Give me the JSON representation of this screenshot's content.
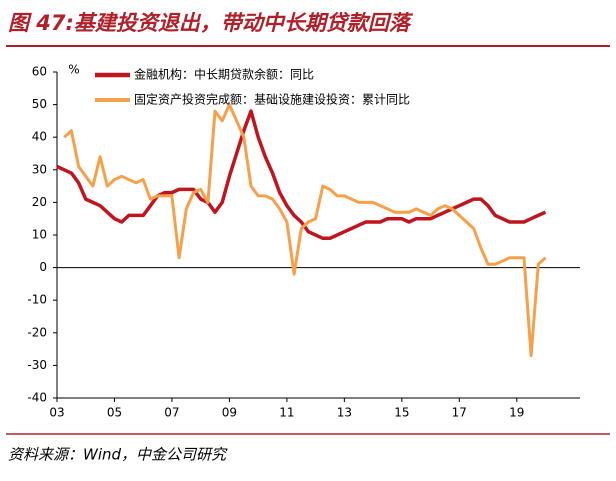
{
  "chart_data": {
    "type": "line",
    "title": "图 47:基建投资退出，带动中长期贷款回落",
    "source": "资料来源：Wind，中金公司研究",
    "y_unit": "%",
    "x": [
      3,
      3.25,
      3.5,
      3.75,
      4,
      4.25,
      4.5,
      4.75,
      5,
      5.25,
      5.5,
      5.75,
      6,
      6.25,
      6.5,
      6.75,
      7,
      7.25,
      7.5,
      7.75,
      8,
      8.25,
      8.5,
      8.75,
      9,
      9.25,
      9.5,
      9.75,
      10,
      10.25,
      10.5,
      10.75,
      11,
      11.25,
      11.5,
      11.75,
      12,
      12.25,
      12.5,
      12.75,
      13,
      13.25,
      13.5,
      13.75,
      14,
      14.25,
      14.5,
      14.75,
      15,
      15.25,
      15.5,
      15.75,
      16,
      16.25,
      16.5,
      16.75,
      17,
      17.25,
      17.5,
      17.75,
      18,
      18.25,
      18.5,
      18.75,
      19,
      19.25,
      19.5,
      19.75,
      20
    ],
    "series": [
      {
        "name": "金融机构：中长期贷款余额：同比",
        "color": "#c0141e",
        "width": 3.5,
        "values": [
          31,
          30,
          29,
          26,
          21,
          20,
          19,
          17,
          15,
          14,
          16,
          16,
          16,
          19,
          22,
          23,
          23,
          24,
          24,
          24,
          21,
          20,
          17,
          20,
          28,
          35,
          42,
          48,
          40,
          34,
          29,
          23,
          19,
          16,
          14,
          11,
          10,
          9,
          9,
          10,
          11,
          12,
          13,
          14,
          14,
          14,
          15,
          15,
          15,
          14,
          15,
          15,
          15,
          16,
          17,
          18,
          19,
          20,
          21,
          21,
          19,
          16,
          15,
          14,
          14,
          14,
          15,
          16,
          17
        ]
      },
      {
        "name": "固定资产投资完成额：基础设施建设投资：累计同比",
        "color": "#f7a04b",
        "width": 3,
        "values": [
          null,
          40,
          42,
          31,
          28,
          25,
          34,
          25,
          27,
          28,
          27,
          26,
          27,
          21,
          22,
          22,
          22,
          3,
          18,
          23,
          24,
          20,
          48,
          45,
          50,
          45,
          40,
          25,
          22,
          22,
          21,
          18,
          14,
          -2,
          12,
          14,
          15,
          25,
          24,
          22,
          22,
          21,
          20,
          20,
          20,
          19,
          18,
          17,
          17,
          17,
          18,
          17,
          16,
          18,
          19,
          18,
          16,
          14,
          12,
          6,
          1,
          1,
          2,
          3,
          3,
          3,
          -27,
          1,
          3
        ]
      }
    ],
    "xlim": [
      3,
      21.2
    ],
    "xticks": [
      {
        "value": 3,
        "label": "03"
      },
      {
        "value": 5,
        "label": "05"
      },
      {
        "value": 7,
        "label": "07"
      },
      {
        "value": 9,
        "label": "09"
      },
      {
        "value": 11,
        "label": "11"
      },
      {
        "value": 13,
        "label": "13"
      },
      {
        "value": 15,
        "label": "15"
      },
      {
        "value": 17,
        "label": "17"
      },
      {
        "value": 19,
        "label": "19"
      }
    ],
    "ylim": [
      -40,
      60
    ],
    "yticks": [
      -40,
      -30,
      -20,
      -10,
      0,
      10,
      20,
      30,
      40,
      50,
      60
    ]
  }
}
